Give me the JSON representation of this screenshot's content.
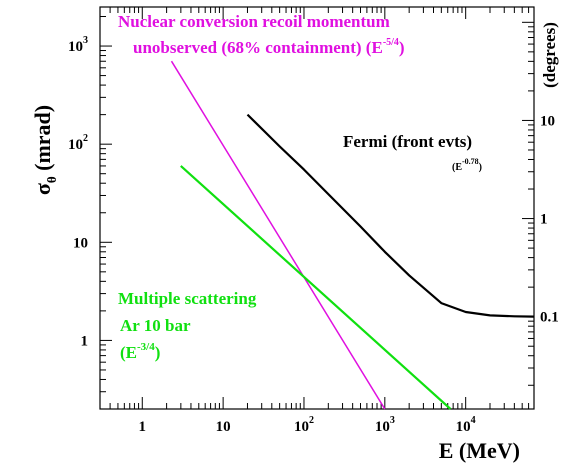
{
  "chart_data": {
    "type": "line",
    "xscale": "log",
    "yscale": "log",
    "xlim": [
      0.3,
      70000
    ],
    "ylim": [
      0.2,
      2500
    ],
    "xlabel": "E (MeV)",
    "ylabel": "σ",
    "ylabel_sub": "θ",
    "ylabel_unit": "(mrad)",
    "right_axis_label": "(degrees)",
    "x_ticks": [
      {
        "value": 1,
        "base": "1",
        "exp": ""
      },
      {
        "value": 10,
        "base": "10",
        "exp": ""
      },
      {
        "value": 100,
        "base": "10",
        "exp": "2"
      },
      {
        "value": 1000,
        "base": "10",
        "exp": "3"
      },
      {
        "value": 10000,
        "base": "10",
        "exp": "4"
      }
    ],
    "y_ticks": [
      {
        "value": 1,
        "base": "1",
        "exp": ""
      },
      {
        "value": 10,
        "base": "10",
        "exp": ""
      },
      {
        "value": 100,
        "base": "10",
        "exp": "2"
      },
      {
        "value": 1000,
        "base": "10",
        "exp": "3"
      }
    ],
    "right_ticks": [
      {
        "value_deg": 0.1,
        "label": "0.1"
      },
      {
        "value_deg": 1,
        "label": "1"
      },
      {
        "value_deg": 10,
        "label": "10"
      }
    ],
    "series": [
      {
        "name": "Nuclear conversion recoil momentum unobserved (68% containment) (E-5/4)",
        "color": "#e010e0",
        "x": [
          2.3,
          1000
        ],
        "y": [
          700,
          0.2
        ]
      },
      {
        "name": "Multiple scattering Ar 10 bar (E-3/4)",
        "color": "#10e010",
        "x": [
          3,
          6500
        ],
        "y": [
          60,
          0.2
        ]
      },
      {
        "name": "Fermi (front evts) (E-0.78)",
        "color": "#000000",
        "x": [
          20,
          50,
          100,
          200,
          500,
          1000,
          2000,
          5000,
          10000,
          20000,
          40000,
          70000
        ],
        "y": [
          200,
          95,
          55,
          31,
          14.5,
          8,
          4.6,
          2.4,
          1.95,
          1.8,
          1.76,
          1.75
        ]
      }
    ]
  },
  "annotations": {
    "nuclear_line1": "Nuclear conversion recoil momentum",
    "nuclear_line2": "unobserved  (68% containment)  (E",
    "nuclear_exp": "-5/4",
    "nuclear_close": ")",
    "fermi_label": "Fermi (front evts)",
    "fermi_exp_open": "(E",
    "fermi_exp": "-0.78",
    "fermi_exp_close": ")",
    "ms_line1": "Multiple scattering",
    "ms_line2": "Ar 10 bar",
    "ms_line3_open": "(E",
    "ms_exp": "-3/4",
    "ms_close": ")"
  }
}
